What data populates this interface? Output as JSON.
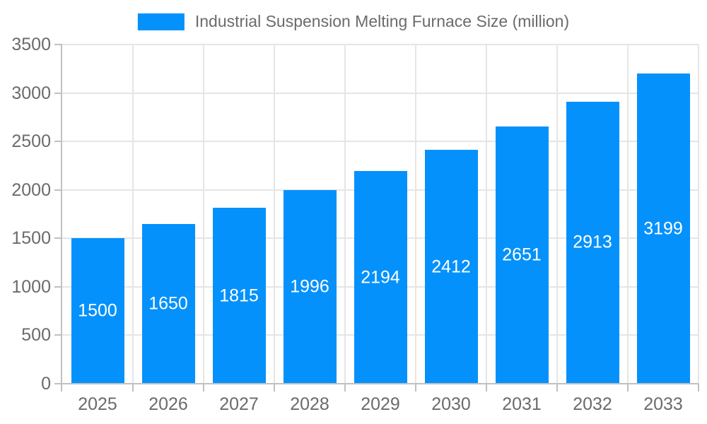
{
  "legend": {
    "label": "Industrial Suspension Melting Furnace Size (million)"
  },
  "chart_data": {
    "type": "bar",
    "title": "Industrial Suspension Melting Furnace Size (million)",
    "categories": [
      "2025",
      "2026",
      "2027",
      "2028",
      "2029",
      "2030",
      "2031",
      "2032",
      "2033"
    ],
    "series": [
      {
        "name": "Industrial Suspension Melting Furnace Size (million)",
        "values": [
          1500,
          1650,
          1815,
          1996,
          2194,
          2412,
          2651,
          2913,
          3199
        ],
        "color": "#0591fb"
      }
    ],
    "xlabel": "",
    "ylabel": "",
    "ylim": [
      0,
      3500
    ],
    "ytick_step": 500,
    "grid": true,
    "legend_position": "top-center",
    "value_labels": "inside-center",
    "value_label_color": "#ffffff",
    "axis_text_color": "#6b6b6b",
    "gridline_color": "#e5e5e5",
    "axis_line_color": "#c0c0c0"
  }
}
